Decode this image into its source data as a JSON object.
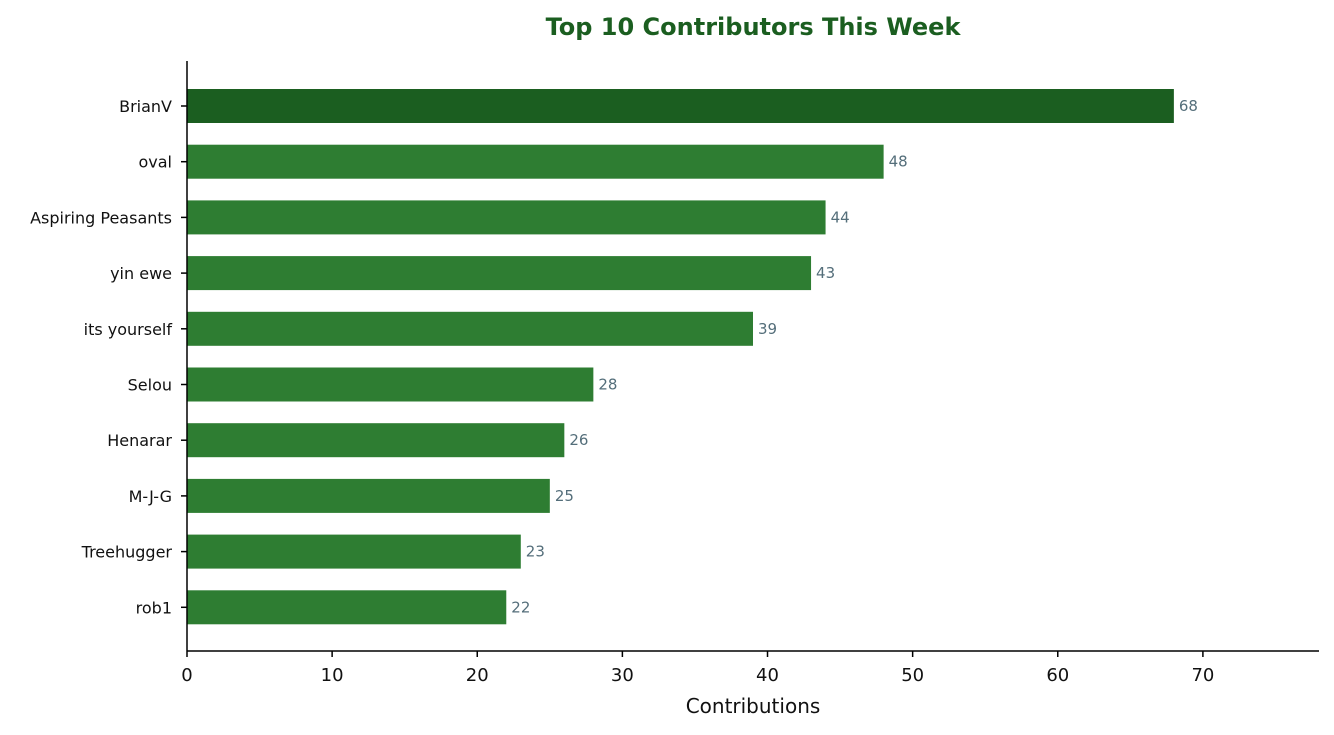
{
  "chart_data": {
    "type": "bar",
    "orientation": "horizontal",
    "title": "Top 10 Contributors This Week",
    "xlabel": "Contributions",
    "ylabel": "",
    "categories": [
      "BrianV",
      "oval",
      "Aspiring Peasants",
      "yin ewe",
      "its yourself",
      "Selou",
      "Henarar",
      "M-J-G",
      "Treehugger",
      "rob1"
    ],
    "values": [
      68,
      48,
      44,
      43,
      39,
      28,
      26,
      25,
      23,
      22
    ],
    "xlim": [
      0,
      78
    ],
    "xticks": [
      0,
      10,
      20,
      30,
      40,
      50,
      60,
      70
    ],
    "grid": false,
    "legend": "none",
    "highlight_index": 0
  },
  "colors": {
    "title": "#1b5e20",
    "bar": "#2e7d32",
    "bar_highlight": "#1b5e20",
    "value_label": "#546e7a",
    "axis": "#000000"
  }
}
